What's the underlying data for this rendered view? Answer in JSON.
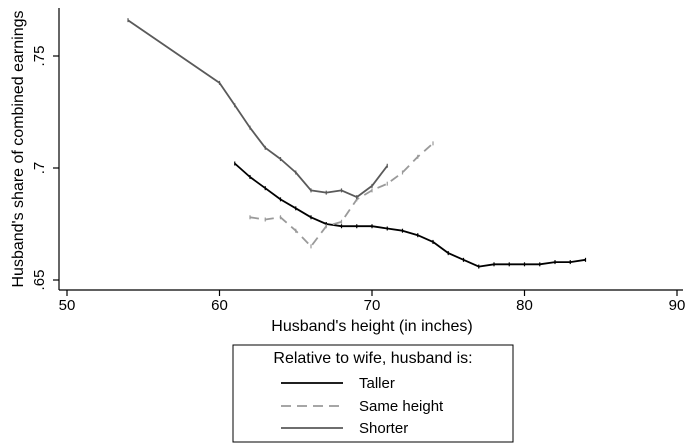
{
  "chart_data": {
    "type": "line",
    "xlabel": "Husband's height (in inches)",
    "ylabel": "Husband's share of combined earnings",
    "xlim": [
      50,
      90
    ],
    "ylim": [
      0.65,
      0.77
    ],
    "x_ticks": [
      50,
      60,
      70,
      80,
      90
    ],
    "x_tick_labels": [
      "50",
      "60",
      "70",
      "80",
      "90"
    ],
    "y_ticks": [
      0.65,
      0.7,
      0.75
    ],
    "y_tick_labels": [
      ".65",
      ".7",
      ".75"
    ],
    "grid": false,
    "legend": {
      "title": "Relative to wife, husband is:",
      "placement": "bottom-center"
    },
    "series": [
      {
        "name": "Taller",
        "color": "#000000",
        "style": "solid",
        "points": [
          [
            61,
            0.702
          ],
          [
            62,
            0.696
          ],
          [
            63,
            0.691
          ],
          [
            64,
            0.686
          ],
          [
            65,
            0.682
          ],
          [
            66,
            0.678
          ],
          [
            67,
            0.675
          ],
          [
            68,
            0.674
          ],
          [
            69,
            0.674
          ],
          [
            70,
            0.674
          ],
          [
            71,
            0.673
          ],
          [
            72,
            0.672
          ],
          [
            73,
            0.67
          ],
          [
            74,
            0.667
          ],
          [
            75,
            0.662
          ],
          [
            76,
            0.659
          ],
          [
            77,
            0.656
          ],
          [
            78,
            0.657
          ],
          [
            79,
            0.657
          ],
          [
            80,
            0.657
          ],
          [
            81,
            0.657
          ],
          [
            82,
            0.658
          ],
          [
            83,
            0.658
          ],
          [
            84,
            0.659
          ]
        ]
      },
      {
        "name": "Same height",
        "color": "#9a9a9a",
        "style": "dashed",
        "points": [
          [
            62,
            0.678
          ],
          [
            63,
            0.677
          ],
          [
            64,
            0.678
          ],
          [
            65,
            0.672
          ],
          [
            66,
            0.665
          ],
          [
            67,
            0.674
          ],
          [
            68,
            0.676
          ],
          [
            69,
            0.686
          ],
          [
            70,
            0.69
          ],
          [
            71,
            0.693
          ],
          [
            72,
            0.698
          ],
          [
            73,
            0.705
          ],
          [
            74,
            0.711
          ]
        ]
      },
      {
        "name": "Shorter",
        "color": "#5a5a5a",
        "style": "solid",
        "points": [
          [
            54,
            0.766
          ],
          [
            60,
            0.738
          ],
          [
            61,
            0.728
          ],
          [
            62,
            0.718
          ],
          [
            63,
            0.709
          ],
          [
            64,
            0.704
          ],
          [
            65,
            0.698
          ],
          [
            66,
            0.69
          ],
          [
            67,
            0.689
          ],
          [
            68,
            0.69
          ],
          [
            69,
            0.687
          ],
          [
            70,
            0.692
          ],
          [
            71,
            0.701
          ]
        ]
      }
    ]
  }
}
